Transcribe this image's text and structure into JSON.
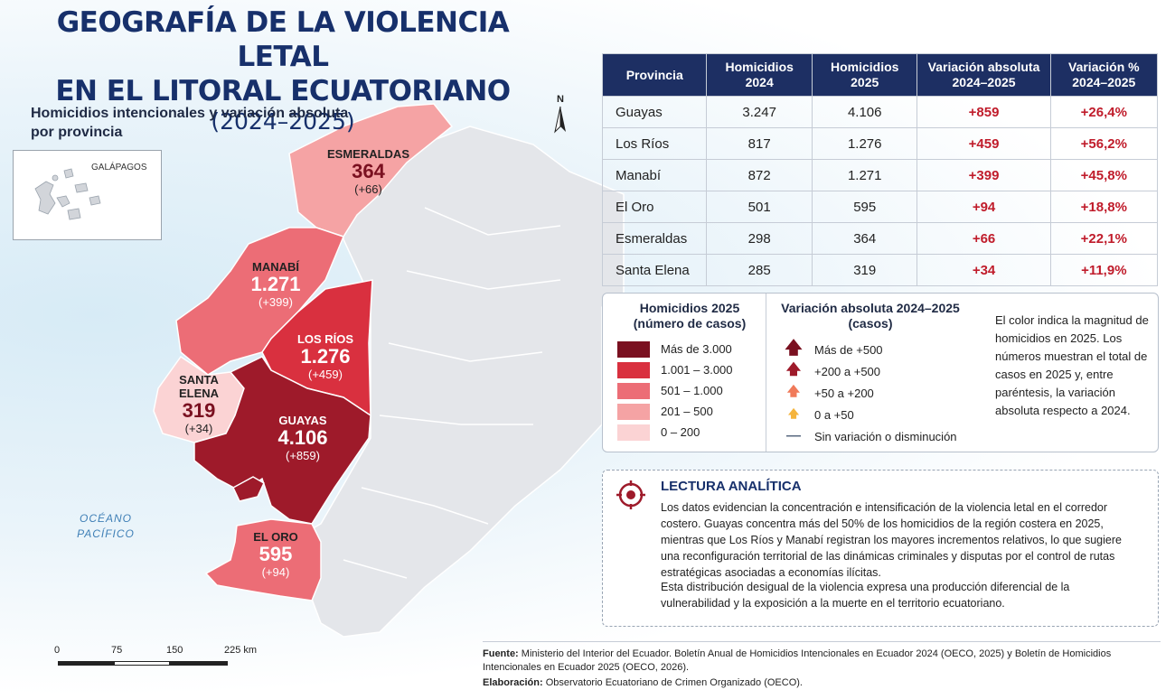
{
  "title": {
    "line1": "GEOGRAFÍA DE LA VIOLENCIA LETAL",
    "line2": "EN EL LITORAL ECUATORIANO",
    "line3": "(2024–2025)"
  },
  "subtitle": "Homicidios intencionales y variación absoluta por provincia",
  "inset_label": "GALÁPAGOS",
  "north_label": "N",
  "ocean_label": "OCÉANO PACÍFICO",
  "map_labels": {
    "esmeraldas": {
      "name": "ESMERALDAS",
      "value": "364",
      "change": "(+66)"
    },
    "manabi": {
      "name": "MANABÍ",
      "value": "1.271",
      "change": "(+399)"
    },
    "los_rios": {
      "name": "LOS RÍOS",
      "value": "1.276",
      "change": "(+459)"
    },
    "santa_elena": {
      "name": "SANTA ELENA",
      "value": "319",
      "change": "(+34)"
    },
    "guayas": {
      "name": "GUAYAS",
      "value": "4.106",
      "change": "(+859)"
    },
    "el_oro": {
      "name": "EL ORO",
      "value": "595",
      "change": "(+94)"
    }
  },
  "scale": {
    "ticks": [
      "0",
      "75",
      "150",
      "225 km"
    ]
  },
  "table": {
    "headers": [
      "Provincia",
      "Homicidios 2024",
      "Homicidios 2025",
      "Variación absoluta 2024–2025",
      "Variación % 2024–2025"
    ],
    "rows": [
      [
        "Guayas",
        "3.247",
        "4.106",
        "+859",
        "+26,4%"
      ],
      [
        "Los Ríos",
        "817",
        "1.276",
        "+459",
        "+56,2%"
      ],
      [
        "Manabí",
        "872",
        "1.271",
        "+399",
        "+45,8%"
      ],
      [
        "El Oro",
        "501",
        "595",
        "+94",
        "+18,8%"
      ],
      [
        "Esmeraldas",
        "298",
        "364",
        "+66",
        "+22,1%"
      ],
      [
        "Santa Elena",
        "285",
        "319",
        "+34",
        "+11,9%"
      ]
    ]
  },
  "legend": {
    "col1_title": "Homicidios 2025 (número de casos)",
    "classes": [
      {
        "label": "Más de 3.000",
        "color": "#7a1020"
      },
      {
        "label": "1.001 – 3.000",
        "color": "#d9303f"
      },
      {
        "label": "501 – 1.000",
        "color": "#ec6d76"
      },
      {
        "label": "201 – 500",
        "color": "#f5a3a4"
      },
      {
        "label": "0 – 200",
        "color": "#fbd3d4"
      }
    ],
    "col2_title": "Variación absoluta 2024–2025 (casos)",
    "arrows": [
      {
        "label": "Más de +500",
        "color": "#7a1020",
        "icon": "arrow-up-large"
      },
      {
        "label": "+200 a +500",
        "color": "#9e1a2a",
        "icon": "arrow-up-medium"
      },
      {
        "label": "+50 a +200",
        "color": "#f07a5a",
        "icon": "arrow-up-small"
      },
      {
        "label": "0 a +50",
        "color": "#f5b43c",
        "icon": "arrow-up-tiny"
      },
      {
        "label": "Sin variación o disminución",
        "color": "#5b6b82",
        "icon": "dash"
      }
    ],
    "note": "El color indica la magnitud de homicidios en 2025. Los números muestran el total de casos en 2025 y, entre paréntesis, la variación absoluta respecto a 2024."
  },
  "lectura": {
    "title": "LECTURA ANALÍTICA",
    "p1": "Los datos evidencian la concentración e intensificación de la violencia letal en el corredor costero. Guayas concentra más del 50% de los homicidios de la región costera en 2025, mientras que Los Ríos y Manabí registran los mayores incrementos relativos, lo que sugiere una reconfiguración territorial de las dinámicas criminales y disputas por el control de rutas estratégicas asociadas a economías ilícitas.",
    "p2": "Esta distribución desigual de la violencia expresa una producción diferencial de la vulnerabilidad y la exposición a la muerte en el territorio ecuatoriano."
  },
  "footer": {
    "fuente_label": "Fuente:",
    "fuente": "Ministerio del Interior del Ecuador. Boletín Anual de Homicidios Intencionales en Ecuador 2024 (OECO, 2025) y Boletín de Homicidios Intencionales en Ecuador 2025 (OECO, 2026).",
    "elab_label": "Elaboración:",
    "elab": "Observatorio Ecuatoriano de Crimen Organizado (OECO)."
  },
  "colors": {
    "title": "#17306b",
    "table_header": "#1d2f63",
    "accent_red": "#c01c2b",
    "land_grey": "#e4e6ea"
  }
}
